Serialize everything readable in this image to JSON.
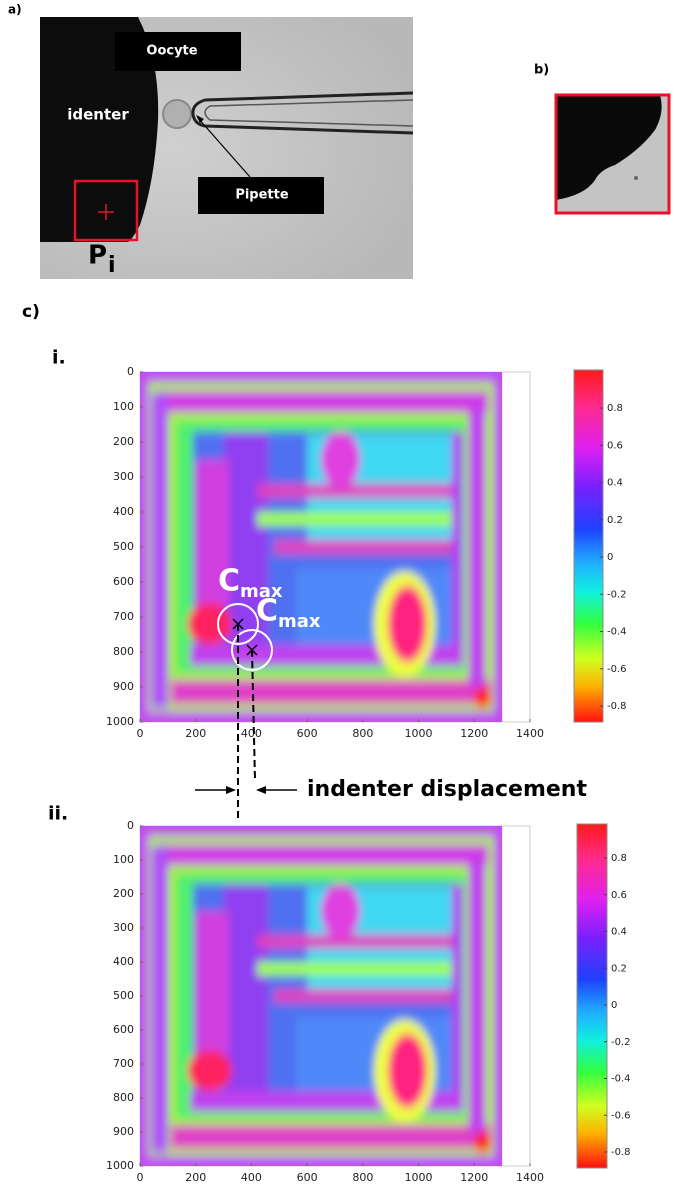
{
  "panel_a": {
    "label": "a)",
    "oocyte": "Oocyte",
    "identer": "identer",
    "pipette": "Pipette",
    "p": "P",
    "p_sub": "i"
  },
  "panel_b": {
    "label": "b)"
  },
  "panel_c": {
    "label": "c)",
    "annotation": "indenter displacement",
    "plots": [
      {
        "label": "i.",
        "cmax": "C",
        "cmax_sub": "max"
      },
      {
        "label": "ii.",
        "cmax": "C",
        "cmax_sub": "max"
      }
    ],
    "yticks": [
      0,
      100,
      200,
      300,
      400,
      500,
      600,
      700,
      800,
      900,
      1000
    ],
    "xticks": [
      0,
      200,
      400,
      600,
      800,
      1000,
      1200,
      1400
    ],
    "colorbar_ticks": [
      0.8,
      0.6,
      0.4,
      0.2,
      0,
      -0.2,
      -0.4,
      -0.6,
      -0.8
    ]
  }
}
